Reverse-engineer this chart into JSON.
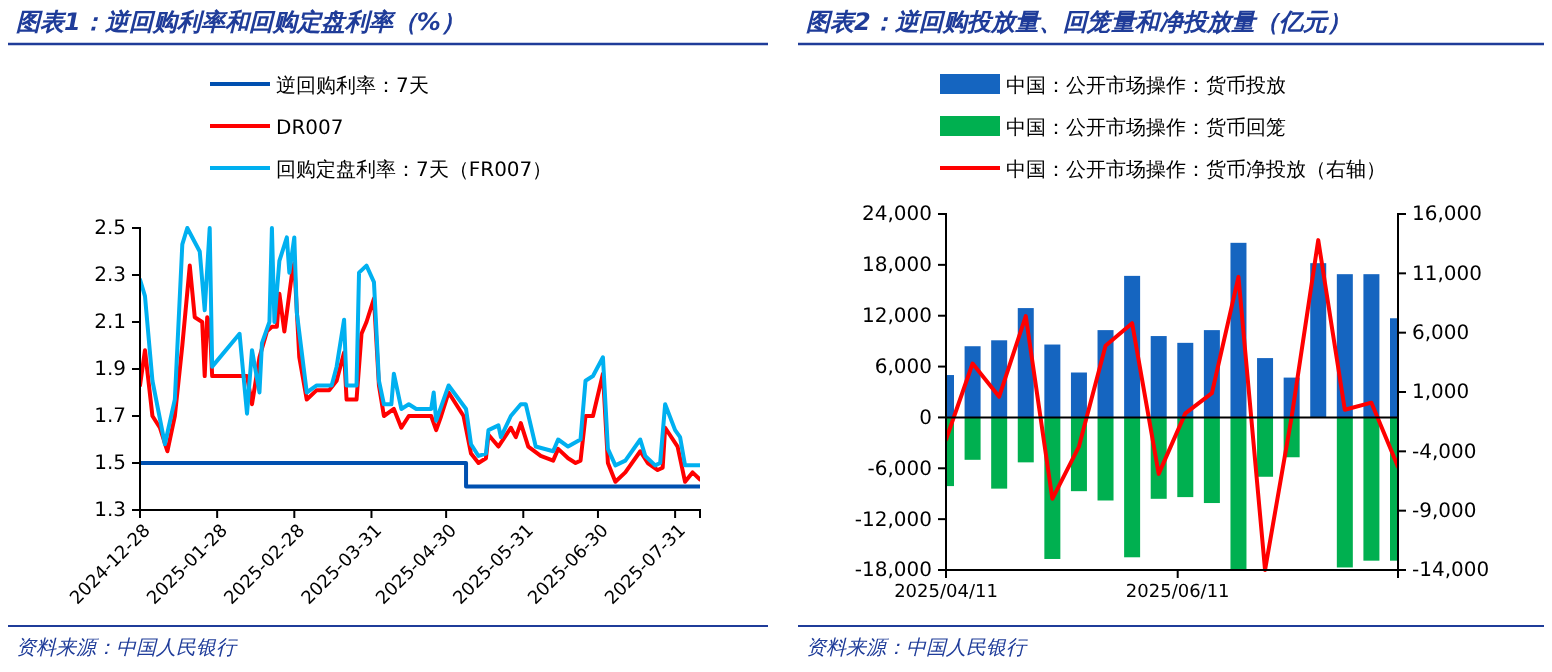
{
  "chart_data": [
    {
      "type": "line",
      "title": "图表1：逆回购利率和回购定盘利率（%）",
      "legend": "top",
      "xlim": [
        "2024-12-28",
        "2025-08-10"
      ],
      "xticks": [
        "2024-12-28",
        "2025-01-28",
        "2025-02-28",
        "2025-03-31",
        "2025-04-30",
        "2025-05-31",
        "2025-06-30",
        "2025-07-31"
      ],
      "ylim": [
        1.3,
        2.5
      ],
      "yticks": [
        {
          "value": 1.3,
          "label": "1.3"
        },
        {
          "value": 1.5,
          "label": "1.5"
        },
        {
          "value": 1.7,
          "label": "1.7"
        },
        {
          "value": 1.9,
          "label": "1.9"
        },
        {
          "value": 2.1,
          "label": "2.1"
        },
        {
          "value": 2.3,
          "label": "2.3"
        },
        {
          "value": 2.5,
          "label": "2.5"
        }
      ],
      "annotations": [
        "资料来源：中国人民银行"
      ],
      "series": [
        {
          "name": "逆回购利率：7天",
          "type": "step",
          "color": "#0050b0",
          "x": [
            "2024-12-28",
            "2025-05-08",
            "2025-08-10"
          ],
          "values": [
            1.5,
            1.4,
            1.4
          ]
        },
        {
          "name": "DR007",
          "color": "#ff0000",
          "x": [
            "2024-12-28",
            "2024-12-30",
            "2025-01-02",
            "2025-01-05",
            "2025-01-08",
            "2025-01-11",
            "2025-01-14",
            "2025-01-17",
            "2025-01-19",
            "2025-01-22",
            "2025-01-23",
            "2025-01-24",
            "2025-01-25",
            "2025-01-26",
            "2025-02-09",
            "2025-02-11",
            "2025-02-14",
            "2025-02-17",
            "2025-02-19",
            "2025-02-21",
            "2025-02-22",
            "2025-02-24",
            "2025-02-27",
            "2025-02-28",
            "2025-03-02",
            "2025-03-05",
            "2025-03-09",
            "2025-03-14",
            "2025-03-17",
            "2025-03-20",
            "2025-03-21",
            "2025-03-25",
            "2025-03-27",
            "2025-03-29",
            "2025-04-01",
            "2025-04-03",
            "2025-04-05",
            "2025-04-09",
            "2025-04-12",
            "2025-04-15",
            "2025-04-20",
            "2025-04-24",
            "2025-04-26",
            "2025-04-28",
            "2025-05-01",
            "2025-05-07",
            "2025-05-10",
            "2025-05-13",
            "2025-05-16",
            "2025-05-17",
            "2025-05-21",
            "2025-05-26",
            "2025-05-28",
            "2025-05-30",
            "2025-06-02",
            "2025-06-07",
            "2025-06-12",
            "2025-06-14",
            "2025-06-18",
            "2025-06-21",
            "2025-06-23",
            "2025-06-25",
            "2025-06-28",
            "2025-07-02",
            "2025-07-04",
            "2025-07-07",
            "2025-07-11",
            "2025-07-17",
            "2025-07-20",
            "2025-07-24",
            "2025-07-26",
            "2025-07-27",
            "2025-08-01",
            "2025-08-04",
            "2025-08-07",
            "2025-08-10"
          ],
          "values": [
            1.83,
            1.98,
            1.7,
            1.65,
            1.55,
            1.7,
            2.0,
            2.34,
            2.12,
            2.1,
            1.87,
            2.12,
            2.1,
            1.87,
            1.87,
            1.75,
            1.95,
            2.06,
            2.08,
            2.08,
            2.22,
            2.06,
            2.3,
            2.35,
            1.95,
            1.77,
            1.81,
            1.81,
            1.85,
            1.97,
            1.77,
            1.77,
            2.05,
            2.1,
            2.2,
            1.83,
            1.7,
            1.73,
            1.65,
            1.7,
            1.7,
            1.7,
            1.64,
            1.7,
            1.8,
            1.7,
            1.54,
            1.5,
            1.52,
            1.62,
            1.57,
            1.65,
            1.61,
            1.67,
            1.57,
            1.53,
            1.51,
            1.56,
            1.52,
            1.5,
            1.51,
            1.7,
            1.7,
            1.88,
            1.5,
            1.42,
            1.46,
            1.55,
            1.5,
            1.47,
            1.48,
            1.65,
            1.57,
            1.42,
            1.46,
            1.43
          ]
        },
        {
          "name": "回购定盘利率：7天（FR007）",
          "color": "#00b0f0",
          "x": [
            "2024-12-28",
            "2024-12-30",
            "2025-01-02",
            "2025-01-07",
            "2025-01-11",
            "2025-01-14",
            "2025-01-16",
            "2025-01-21",
            "2025-01-23",
            "2025-01-25",
            "2025-01-26",
            "2025-02-06",
            "2025-02-09",
            "2025-02-11",
            "2025-02-14",
            "2025-02-15",
            "2025-02-18",
            "2025-02-19",
            "2025-02-20",
            "2025-02-22",
            "2025-02-25",
            "2025-02-26",
            "2025-02-28",
            "2025-03-01",
            "2025-03-05",
            "2025-03-09",
            "2025-03-15",
            "2025-03-17",
            "2025-03-20",
            "2025-03-21",
            "2025-03-25",
            "2025-03-26",
            "2025-03-29",
            "2025-04-01",
            "2025-04-03",
            "2025-04-05",
            "2025-04-08",
            "2025-04-09",
            "2025-04-12",
            "2025-04-15",
            "2025-04-18",
            "2025-04-24",
            "2025-04-25",
            "2025-04-26",
            "2025-05-01",
            "2025-05-08",
            "2025-05-10",
            "2025-05-13",
            "2025-05-16",
            "2025-05-17",
            "2025-05-21",
            "2025-05-22",
            "2025-05-26",
            "2025-05-30",
            "2025-06-01",
            "2025-06-05",
            "2025-06-12",
            "2025-06-14",
            "2025-06-18",
            "2025-06-23",
            "2025-06-25",
            "2025-06-28",
            "2025-07-02",
            "2025-07-04",
            "2025-07-07",
            "2025-07-11",
            "2025-07-17",
            "2025-07-19",
            "2025-07-23",
            "2025-07-25",
            "2025-07-27",
            "2025-07-31",
            "2025-08-02",
            "2025-08-04",
            "2025-08-10"
          ],
          "values": [
            2.28,
            2.21,
            1.85,
            1.58,
            1.77,
            2.43,
            2.5,
            2.4,
            2.15,
            2.5,
            1.91,
            2.05,
            1.71,
            1.98,
            1.8,
            2.01,
            2.1,
            2.5,
            2.1,
            2.36,
            2.46,
            2.31,
            2.46,
            2.14,
            1.8,
            1.83,
            1.83,
            1.91,
            2.11,
            1.83,
            1.83,
            2.31,
            2.34,
            2.27,
            1.85,
            1.75,
            1.75,
            1.88,
            1.73,
            1.75,
            1.73,
            1.73,
            1.8,
            1.68,
            1.83,
            1.73,
            1.58,
            1.53,
            1.54,
            1.64,
            1.66,
            1.61,
            1.7,
            1.75,
            1.75,
            1.57,
            1.55,
            1.6,
            1.57,
            1.6,
            1.85,
            1.87,
            1.95,
            1.56,
            1.49,
            1.51,
            1.6,
            1.53,
            1.49,
            1.5,
            1.75,
            1.64,
            1.61,
            1.49,
            1.49
          ]
        }
      ]
    },
    {
      "type": "bar",
      "stacked": true,
      "title": "图表2：逆回购投放量、回笼量和净投放量（亿元）",
      "legend": "top",
      "x": [
        "2025-04-11",
        "2025-04-18",
        "2025-04-25",
        "2025-05-02",
        "2025-05-09",
        "2025-05-16",
        "2025-05-23",
        "2025-05-30",
        "2025-06-06",
        "2025-06-13",
        "2025-06-20",
        "2025-06-27",
        "2025-07-04",
        "2025-07-11",
        "2025-07-18",
        "2025-07-25",
        "2025-08-01",
        "2025-08-08"
      ],
      "xlim": [
        "2025-04-11",
        "2025-08-08"
      ],
      "xticks": [
        {
          "value": "2025-04-11",
          "label": "2025/04/11"
        },
        {
          "value": "2025-06-11",
          "label": "2025/06/11"
        }
      ],
      "ylim": [
        -18000,
        24000
      ],
      "yticks": [
        {
          "value": -18000,
          "label": "-18,000"
        },
        {
          "value": -12000,
          "label": "-12,000"
        },
        {
          "value": -6000,
          "label": "-6,000"
        },
        {
          "value": 0,
          "label": "0"
        },
        {
          "value": 6000,
          "label": "6,000"
        },
        {
          "value": 12000,
          "label": "12,000"
        },
        {
          "value": 18000,
          "label": "18,000"
        },
        {
          "value": 24000,
          "label": "24,000"
        }
      ],
      "y2lim": [
        -14000,
        16000
      ],
      "y2ticks": [
        {
          "value": -14000,
          "label": "-14,000"
        },
        {
          "value": -9000,
          "label": "-9,000"
        },
        {
          "value": -4000,
          "label": "-4,000"
        },
        {
          "value": 1000,
          "label": "1,000"
        },
        {
          "value": 6000,
          "label": "6,000"
        },
        {
          "value": 11000,
          "label": "11,000"
        },
        {
          "value": 16000,
          "label": "16,000"
        }
      ],
      "annotations": [
        "资料来源：中国人民银行"
      ],
      "series": [
        {
          "name": "中国：公开市场操作：货币投放",
          "color": "#1565c0",
          "values": [
            5000,
            8400,
            9100,
            12900,
            8600,
            5300,
            10300,
            16700,
            9600,
            8800,
            10300,
            20600,
            7000,
            4700,
            18200,
            16900,
            16900,
            11700
          ]
        },
        {
          "name": "中国：公开市场操作：货币回笼",
          "color": "#00b050",
          "values": [
            -8100,
            -5000,
            -8400,
            -5300,
            -16700,
            -8700,
            -9800,
            -16500,
            -9600,
            -9400,
            -10100,
            -18000,
            -7000,
            -4700,
            null,
            -17700,
            -16900,
            -16900
          ]
        },
        {
          "name": "中国：公开市场操作：货币净投放（右轴）",
          "type": "line",
          "axis": "y2",
          "color": "#ff0000",
          "values": [
            -3000,
            3400,
            600,
            7400,
            -8000,
            -3600,
            4900,
            6800,
            -5900,
            -800,
            900,
            10700,
            -14000,
            -1100,
            13800,
            -500,
            100,
            -5300
          ]
        }
      ]
    }
  ]
}
